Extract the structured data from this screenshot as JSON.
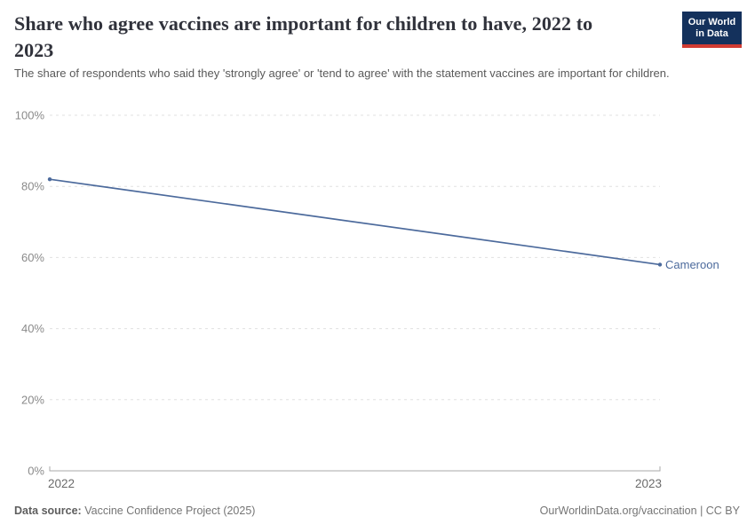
{
  "header": {
    "title": "Share who agree vaccines are important for children to have, 2022 to 2023",
    "subtitle": "The share of respondents who said they 'strongly agree' or 'tend to agree' with the statement vaccines are important for children.",
    "logo": {
      "line1": "Our World",
      "line2": "in Data"
    }
  },
  "chart_data": {
    "type": "line",
    "title": "Share who agree vaccines are important for children to have, 2022 to 2023",
    "x": [
      2022,
      2023
    ],
    "series": [
      {
        "name": "Cameroon",
        "values": [
          82,
          58
        ],
        "color": "#4c6a9c"
      }
    ],
    "xlabel": "",
    "ylabel": "",
    "ylim": [
      0,
      100
    ],
    "yticks": [
      0,
      20,
      40,
      60,
      80,
      100
    ],
    "ytick_suffix": "%",
    "grid": "horizontal-dashed",
    "legend_position": "end-of-line-label"
  },
  "footer": {
    "datasource_label": "Data source:",
    "datasource_value": "Vaccine Confidence Project (2025)",
    "credit": "OurWorldinData.org/vaccination | CC BY"
  },
  "colors": {
    "line": "#4c6a9c",
    "grid": "#e0e0e0",
    "axis": "#a8a8a8",
    "ytick_text": "#8a8a8a",
    "xtick_text": "#6b6b6b",
    "title_text": "#30323b",
    "subtitle_text": "#595959",
    "footer_text": "#757575",
    "logo_bg": "#14315c",
    "logo_bar": "#d13b32"
  }
}
